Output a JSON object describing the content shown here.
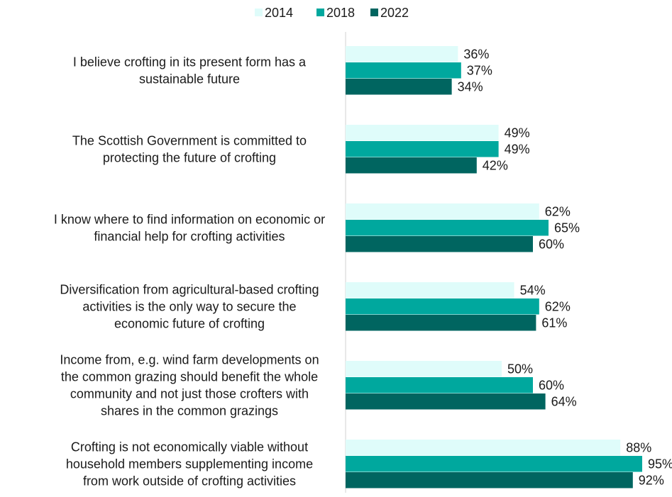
{
  "chart_data": {
    "type": "bar",
    "orientation": "horizontal",
    "legend_position": "top",
    "xlim": [
      0,
      100
    ],
    "grid": false,
    "categories": [
      [
        "I believe crofting in its present form has a",
        "sustainable future"
      ],
      [
        "The Scottish Government is committed to",
        "protecting the future of crofting"
      ],
      [
        "I know where to find information on economic or",
        "financial help for crofting activities"
      ],
      [
        "Diversification from agricultural-based crofting",
        "activities is the only way to secure the",
        "economic future of crofting"
      ],
      [
        "Income from, e.g. wind farm developments on",
        "the common grazing should benefit the whole",
        "community and not just those crofters with",
        "shares in the common grazings"
      ],
      [
        "Crofting is not economically viable without",
        "household members supplementing income",
        "from work outside of crofting activities"
      ]
    ],
    "series": [
      {
        "name": "2014",
        "color": "#dffcfa",
        "values": [
          36,
          49,
          62,
          54,
          50,
          88
        ],
        "labels": [
          "36%",
          "49%",
          "62%",
          "54%",
          "50%",
          "88%"
        ]
      },
      {
        "name": "2018",
        "color": "#00a89e",
        "values": [
          37,
          49,
          65,
          62,
          60,
          95
        ],
        "labels": [
          "37%",
          "49%",
          "65%",
          "62%",
          "60%",
          "95%"
        ]
      },
      {
        "name": "2022",
        "color": "#006560",
        "values": [
          34,
          42,
          60,
          61,
          64,
          92
        ],
        "labels": [
          "34%",
          "42%",
          "60%",
          "61%",
          "64%",
          "92%"
        ]
      }
    ]
  }
}
